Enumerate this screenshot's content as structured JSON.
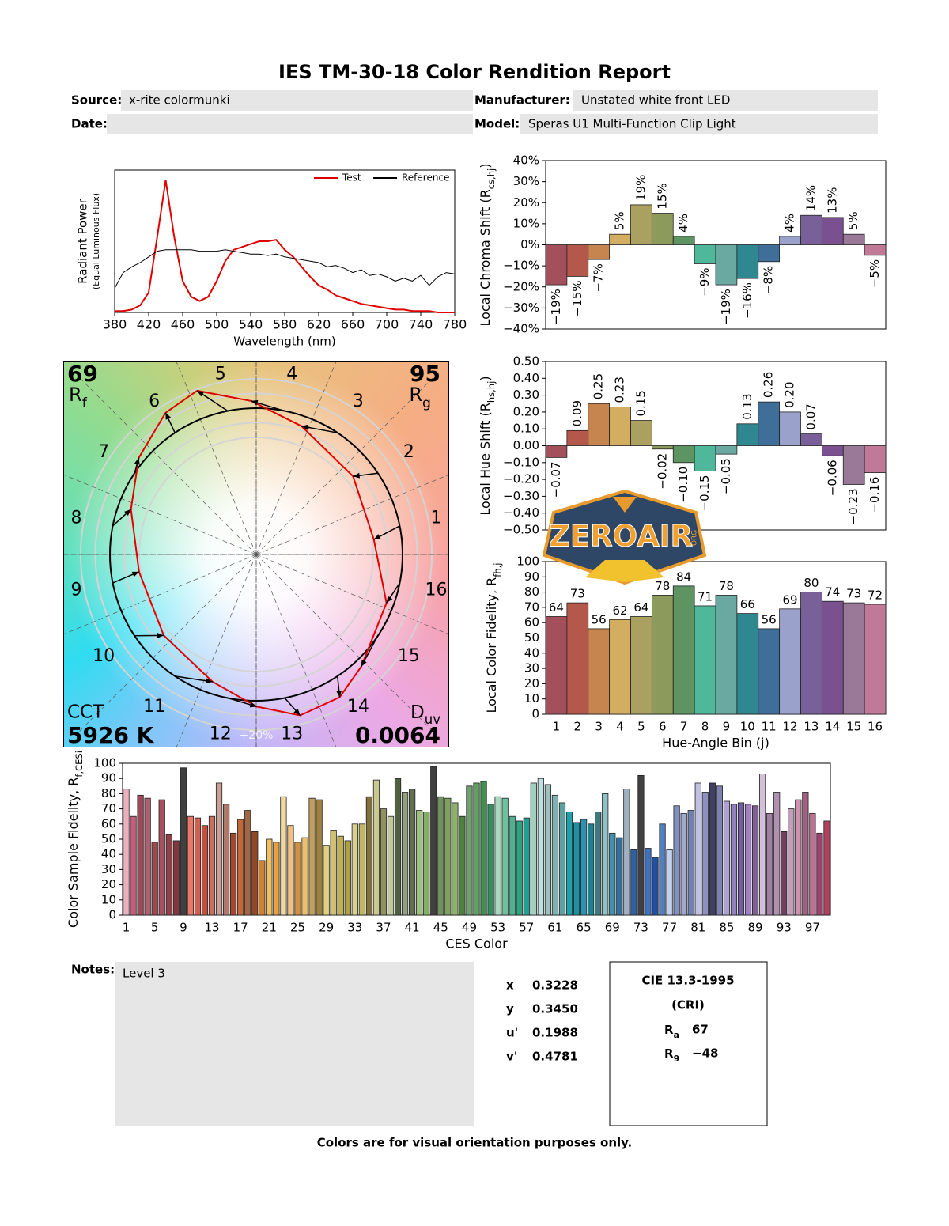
{
  "header": {
    "title": "IES TM-30-18 Color Rendition Report",
    "fields": [
      {
        "label": "Source:",
        "value": "x-rite colormunki"
      },
      {
        "label": "Manufacturer:",
        "value": "Unstated white front LED"
      },
      {
        "label": "Date:"
      },
      {
        "label": "Model:",
        "value": "Speras U1 Multi-Function Clip Light"
      }
    ]
  },
  "chart_data": [
    {
      "type": "line",
      "xlabel": "Wavelength (nm)",
      "ylabel": "Radiant Power",
      "ylabel_note": "(Equal Luminous Flux)",
      "x": [
        380,
        390,
        400,
        410,
        420,
        430,
        440,
        450,
        460,
        470,
        480,
        490,
        500,
        510,
        520,
        530,
        540,
        550,
        560,
        570,
        580,
        590,
        600,
        610,
        620,
        630,
        640,
        650,
        660,
        670,
        680,
        690,
        700,
        710,
        720,
        730,
        740,
        750,
        760,
        770,
        780
      ],
      "xlim": [
        380,
        780
      ],
      "xticks": [
        380,
        420,
        460,
        500,
        540,
        580,
        620,
        660,
        700,
        740,
        780
      ],
      "ylim": [
        0,
        1
      ],
      "legend": "upper right",
      "series": [
        {
          "name": "Test",
          "color": "#e00000",
          "values": [
            0.01,
            0.01,
            0.02,
            0.05,
            0.14,
            0.53,
            0.93,
            0.53,
            0.22,
            0.11,
            0.08,
            0.11,
            0.22,
            0.36,
            0.44,
            0.46,
            0.48,
            0.5,
            0.5,
            0.51,
            0.44,
            0.39,
            0.32,
            0.25,
            0.19,
            0.16,
            0.12,
            0.1,
            0.08,
            0.06,
            0.05,
            0.04,
            0.03,
            0.02,
            0.02,
            0.01,
            0.01,
            0.01,
            0,
            0,
            0
          ]
        },
        {
          "name": "Reference",
          "color": "#000000",
          "values": [
            0.17,
            0.28,
            0.32,
            0.35,
            0.39,
            0.43,
            0.44,
            0.44,
            0.44,
            0.44,
            0.43,
            0.43,
            0.43,
            0.44,
            0.43,
            0.42,
            0.41,
            0.41,
            0.4,
            0.41,
            0.39,
            0.38,
            0.37,
            0.36,
            0.35,
            0.32,
            0.33,
            0.31,
            0.28,
            0.3,
            0.26,
            0.27,
            0.25,
            0.22,
            0.24,
            0.22,
            0.26,
            0.19,
            0.25,
            0.28,
            0.27
          ]
        }
      ]
    },
    {
      "type": "bar",
      "ylabel": {
        "text": "Local Chroma Shift (R",
        "sub": "cs,hj",
        "end": ")"
      },
      "values": [
        -19,
        -15,
        -7,
        5,
        19,
        15,
        4,
        -9,
        -19,
        -16,
        -8,
        4,
        14,
        13,
        5,
        -5
      ],
      "value_labels": [
        "−19%",
        "−15%",
        "−7%",
        "5%",
        "19%",
        "15%",
        "4%",
        "−9%",
        "−19%",
        "−16%",
        "−8%",
        "4%",
        "14%",
        "13%",
        "5%",
        "−5%"
      ],
      "colors": [
        "#a3505c",
        "#b5584c",
        "#c6844e",
        "#d4ae60",
        "#aaa060",
        "#8c9a5c",
        "#5e9462",
        "#4fb89a",
        "#6aa8a2",
        "#2f8790",
        "#3f6f98",
        "#9aa2cc",
        "#7a6098",
        "#7a5090",
        "#9a7898",
        "#c07a98"
      ],
      "ylim": [
        -40,
        40
      ],
      "yticks": [
        {
          "value": -40,
          "label": "−40%"
        },
        {
          "value": -30,
          "label": "−30%"
        },
        {
          "value": -20,
          "label": "−20%"
        },
        {
          "value": -10,
          "label": "−10%"
        },
        {
          "value": 0,
          "label": "0%"
        },
        {
          "value": 10,
          "label": "10%"
        },
        {
          "value": 20,
          "label": "20%"
        },
        {
          "value": 30,
          "label": "30%"
        },
        {
          "value": 40,
          "label": "40%"
        }
      ]
    },
    {
      "type": "bar",
      "ylabel": {
        "text": "Local Hue Shift (R",
        "sub": "hs,hj",
        "end": ")"
      },
      "values": [
        -0.07,
        0.09,
        0.25,
        0.23,
        0.15,
        -0.02,
        -0.1,
        -0.15,
        -0.05,
        0.13,
        0.26,
        0.2,
        0.07,
        -0.06,
        -0.23,
        -0.16
      ],
      "value_labels": [
        "−0.07",
        "0.09",
        "0.25",
        "0.23",
        "0.15",
        "−0.02",
        "−0.10",
        "−0.15",
        "−0.05",
        "0.13",
        "0.26",
        "0.20",
        "0.07",
        "−0.06",
        "−0.23",
        "−0.16"
      ],
      "colors": [
        "#a3505c",
        "#b5584c",
        "#c6844e",
        "#d4ae60",
        "#aaa060",
        "#8c9a5c",
        "#5e9462",
        "#4fb89a",
        "#6aa8a2",
        "#2f8790",
        "#3f6f98",
        "#9aa2cc",
        "#7a6098",
        "#7a5090",
        "#9a7898",
        "#c07a98"
      ],
      "ylim": [
        -0.5,
        0.5
      ],
      "yticks": [
        {
          "value": -0.5,
          "label": "−0.50"
        },
        {
          "value": -0.4,
          "label": "−0.40"
        },
        {
          "value": -0.3,
          "label": "−0.30"
        },
        {
          "value": -0.2,
          "label": "−0.20"
        },
        {
          "value": -0.1,
          "label": "−0.10"
        },
        {
          "value": 0,
          "label": "0.00"
        },
        {
          "value": 0.1,
          "label": "0.10"
        },
        {
          "value": 0.2,
          "label": "0.20"
        },
        {
          "value": 0.3,
          "label": "0.30"
        },
        {
          "value": 0.4,
          "label": "0.40"
        },
        {
          "value": 0.5,
          "label": "0.50"
        }
      ]
    },
    {
      "type": "bar",
      "xlabel": "Hue-Angle Bin (j)",
      "ylabel": {
        "text": "Local Color Fidelity, R",
        "sub": "fh,j"
      },
      "categories": [
        "1",
        "2",
        "3",
        "4",
        "5",
        "6",
        "7",
        "8",
        "9",
        "10",
        "11",
        "12",
        "13",
        "14",
        "15",
        "16"
      ],
      "values": [
        64,
        73,
        56,
        62,
        64,
        78,
        84,
        71,
        78,
        66,
        56,
        69,
        80,
        74,
        73,
        72
      ],
      "colors": [
        "#a3505c",
        "#b5584c",
        "#c6844e",
        "#d4ae60",
        "#aaa060",
        "#8c9a5c",
        "#5e9462",
        "#4fb89a",
        "#6aa8a2",
        "#2f8790",
        "#3f6f98",
        "#9aa2cc",
        "#7a6098",
        "#7a5090",
        "#9a7898",
        "#c07a98"
      ],
      "ylim": [
        0,
        100
      ],
      "yticks": [
        0,
        10,
        20,
        30,
        40,
        50,
        60,
        70,
        80,
        90,
        100
      ]
    },
    {
      "type": "bar",
      "xlabel": "CES Color",
      "ylabel": {
        "text": "Color Sample Fidelity, R",
        "sub": "f,CESi"
      },
      "categories": [
        1,
        null,
        null,
        null,
        5,
        null,
        null,
        null,
        9,
        null,
        null,
        null,
        13,
        null,
        null,
        null,
        17,
        null,
        null,
        null,
        21,
        null,
        null,
        null,
        25,
        null,
        null,
        null,
        29,
        null,
        null,
        null,
        33,
        null,
        null,
        null,
        37,
        null,
        null,
        null,
        41,
        null,
        null,
        null,
        45,
        null,
        null,
        null,
        49,
        null,
        null,
        null,
        53,
        null,
        null,
        null,
        57,
        null,
        null,
        null,
        61,
        null,
        null,
        null,
        65,
        null,
        null,
        null,
        69,
        null,
        null,
        null,
        73,
        null,
        null,
        null,
        77,
        null,
        null,
        null,
        81,
        null,
        null,
        null,
        85,
        null,
        null,
        null,
        89,
        null,
        null,
        null,
        93,
        null,
        null,
        null,
        97,
        null,
        null
      ],
      "values": [
        83,
        65,
        79,
        77,
        48,
        76,
        53,
        49,
        97,
        65,
        64,
        59,
        65,
        87,
        73,
        54,
        63,
        69,
        55,
        36,
        50,
        48,
        78,
        59,
        48,
        51,
        77,
        76,
        46,
        56,
        52,
        49,
        60,
        60,
        78,
        89,
        70,
        65,
        90,
        81,
        83,
        69,
        68,
        98,
        78,
        77,
        74,
        65,
        85,
        87,
        88,
        73,
        78,
        77,
        65,
        62,
        64,
        87,
        90,
        86,
        79,
        74,
        68,
        61,
        63,
        60,
        68,
        80,
        54,
        51,
        83,
        43,
        92,
        44,
        38,
        60,
        43,
        72,
        67,
        69,
        87,
        81,
        87,
        85,
        75,
        73,
        74,
        73,
        72,
        93,
        67,
        81,
        55,
        70,
        76,
        81,
        67,
        54,
        62
      ],
      "colors": [
        "#e9b0c0",
        "#c0607a",
        "#a04858",
        "#b06070",
        "#a04850",
        "#a85060",
        "#904048",
        "#803840",
        "#404040",
        "#e87868",
        "#d06050",
        "#c05040",
        "#c87060",
        "#c8a098",
        "#b07868",
        "#a04830",
        "#c06838",
        "#a06848",
        "#904828",
        "#d08030",
        "#f0c060",
        "#e8a040",
        "#f0d8a0",
        "#f0c080",
        "#d09040",
        "#e8c070",
        "#c0a060",
        "#a08040",
        "#e0d080",
        "#d0c070",
        "#c0b050",
        "#b0a040",
        "#d8d090",
        "#c0b860",
        "#807040",
        "#c8c890",
        "#909060",
        "#c0c8a0",
        "#506040",
        "#90a080",
        "#607050",
        "#a0c080",
        "#80b060",
        "#404040",
        "#709060",
        "#80a060",
        "#90b070",
        "#508040",
        "#70a070",
        "#60a060",
        "#409050",
        "#309060",
        "#a8d8c0",
        "#70c0a0",
        "#50b090",
        "#30a080",
        "#20a090",
        "#a0d0c0",
        "#c0e0e0",
        "#a0c0c0",
        "#80b0b0",
        "#60a0a0",
        "#20a0a8",
        "#2090a0",
        "#3090b0",
        "#208090",
        "#407880",
        "#90c0c8",
        "#4090b0",
        "#3070a0",
        "#a0b0c0",
        "#3060a0",
        "#404040",
        "#4070c0",
        "#2050a0",
        "#5080c0",
        "#c0d0f0",
        "#8090c0",
        "#a0a8d0",
        "#7080b0",
        "#c0c0e0",
        "#9090c0",
        "#404060",
        "#8080b0",
        "#b0a0d0",
        "#9080c0",
        "#7060a0",
        "#a080c0",
        "#806090",
        "#d0c0d8",
        "#a080a0",
        "#b090b0",
        "#704060",
        "#c0a0b8",
        "#d090b0",
        "#a06080",
        "#c07090",
        "#a04070",
        "#b04060"
      ],
      "ylim": [
        0,
        100
      ],
      "yticks": [
        0,
        10,
        20,
        30,
        40,
        50,
        60,
        70,
        80,
        90,
        100
      ]
    }
  ],
  "vector_graphic": {
    "rf": 69,
    "rf_label": {
      "text": "R",
      "sub": "f"
    },
    "rg": 95,
    "rg_label": {
      "text": "R",
      "sub": "g"
    },
    "cct_label": "CCT",
    "cct": "5926 K",
    "duv_label": {
      "text": "D",
      "sub": "uv"
    },
    "duv": 0.0064,
    "ring_label": "+20%"
  },
  "notes": {
    "label": "Notes:",
    "text": "Level 3"
  },
  "chromaticity": [
    {
      "label": "x",
      "value": "0.3228"
    },
    {
      "label": "y",
      "value": "0.3450"
    },
    {
      "label": "u'",
      "value": "0.1988"
    },
    {
      "label": "v'",
      "value": "0.4781"
    }
  ],
  "cri": {
    "title": "CIE 13.3-1995",
    "subtitle": "(CRI)",
    "rows": [
      {
        "symbol": "R",
        "sub": "a",
        "value": "67"
      },
      {
        "symbol": "R",
        "sub": "9",
        "value": "−48"
      }
    ]
  },
  "watermark": {
    "text": "ZEROAIR",
    "sub": "ORG"
  },
  "footer": "Colors are for visual orientation purposes only."
}
